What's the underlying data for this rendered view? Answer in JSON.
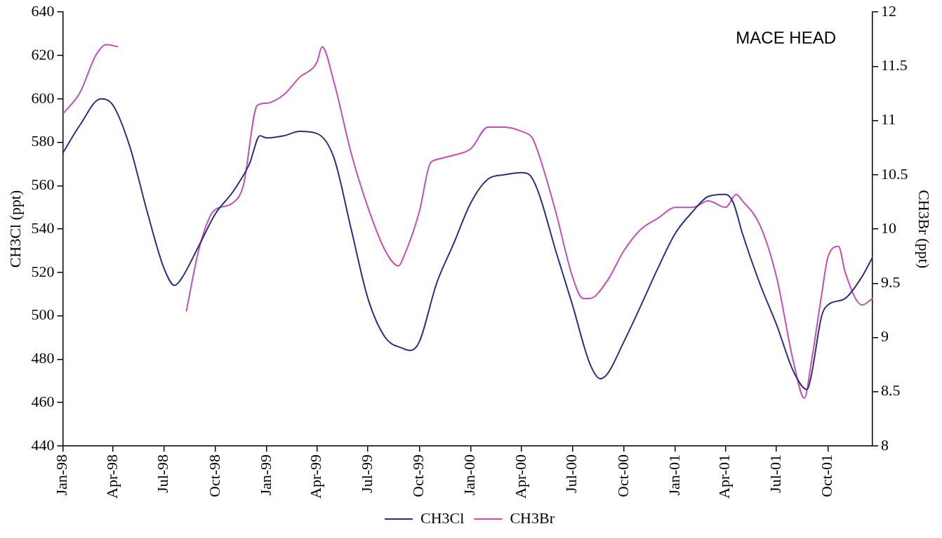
{
  "chart_data": {
    "type": "line",
    "xlabel": null,
    "ylabel": "CH3Cl (ppt)",
    "y2label": "CH3Br (ppt)",
    "annotations": [
      "MACE HEAD"
    ],
    "xlim": [
      "1998-01-01",
      "2001-12-20"
    ],
    "xticks": [
      {
        "value": "1998-01",
        "label": "Jan-98"
      },
      {
        "value": "1998-04",
        "label": "Apr-98"
      },
      {
        "value": "1998-07",
        "label": "Jul-98"
      },
      {
        "value": "1998-10",
        "label": "Oct-98"
      },
      {
        "value": "1999-01",
        "label": "Jan-99"
      },
      {
        "value": "1999-04",
        "label": "Apr-99"
      },
      {
        "value": "1999-07",
        "label": "Jul-99"
      },
      {
        "value": "1999-10",
        "label": "Oct-99"
      },
      {
        "value": "2000-01",
        "label": "Jan-00"
      },
      {
        "value": "2000-04",
        "label": "Apr-00"
      },
      {
        "value": "2000-07",
        "label": "Jul-00"
      },
      {
        "value": "2000-10",
        "label": "Oct-00"
      },
      {
        "value": "2001-01",
        "label": "Jan-01"
      },
      {
        "value": "2001-04",
        "label": "Apr-01"
      },
      {
        "value": "2001-07",
        "label": "Jul-01"
      },
      {
        "value": "2001-10",
        "label": "Oct-01"
      }
    ],
    "ylim": [
      440,
      640
    ],
    "yticks": [
      440,
      460,
      480,
      500,
      520,
      540,
      560,
      580,
      600,
      620,
      640
    ],
    "y2lim": [
      8,
      12
    ],
    "y2ticks": [
      8,
      8.5,
      9,
      9.5,
      10,
      10.5,
      11,
      11.5,
      12
    ],
    "grid": false,
    "legend": "bottom",
    "marker": "none",
    "line_style": "solid",
    "series": [
      {
        "name": "CH3Cl",
        "color": "#2e2f7a",
        "x": [
          "1998-01-01",
          "1998-02-01",
          "1998-03-10",
          "1998-04-01",
          "1998-05-01",
          "1998-06-01",
          "1998-07-01",
          "1998-07-20",
          "1998-08-01",
          "1998-09-01",
          "1998-10-01",
          "1998-11-01",
          "1998-12-01",
          "1998-12-20",
          "1999-01-01",
          "1999-02-01",
          "1999-03-01",
          "1999-04-01",
          "1999-05-01",
          "1999-06-01",
          "1999-07-01",
          "1999-08-01",
          "1999-09-01",
          "1999-09-15",
          "1999-10-01",
          "1999-11-01",
          "1999-12-01",
          "2000-01-01",
          "2000-02-01",
          "2000-03-01",
          "2000-04-01",
          "2000-04-15",
          "2000-05-01",
          "2000-06-01",
          "2000-07-01",
          "2000-08-01",
          "2000-08-20",
          "2000-09-01",
          "2000-10-01",
          "2000-11-01",
          "2000-12-01",
          "2001-01-01",
          "2001-02-01",
          "2001-03-01",
          "2001-04-01",
          "2001-04-15",
          "2001-05-01",
          "2001-06-01",
          "2001-07-01",
          "2001-08-01",
          "2001-08-25",
          "2001-09-01",
          "2001-09-20",
          "2001-10-01",
          "2001-11-01",
          "2001-12-01",
          "2001-12-20"
        ],
        "values": [
          575,
          588,
          600,
          597,
          578,
          548,
          522,
          514,
          517,
          532,
          547,
          557,
          570,
          583,
          582,
          583,
          585,
          584,
          573,
          540,
          508,
          490,
          485,
          484,
          488,
          515,
          533,
          552,
          563,
          565,
          566,
          565,
          557,
          530,
          505,
          478,
          471,
          473,
          488,
          505,
          522,
          538,
          548,
          555,
          556,
          552,
          538,
          515,
          496,
          474,
          466,
          472,
          500,
          505,
          508,
          518,
          527
        ]
      },
      {
        "name": "CH3Br",
        "color": "#c050b8",
        "axis": "y2",
        "x": [
          "1998-01-01",
          "1998-02-01",
          "1998-03-01",
          "1998-03-20",
          "1998-04-10",
          "1998-06-01",
          "1998-08-10",
          "1998-09-01",
          "1998-09-20",
          "1998-10-01",
          "1998-11-01",
          "1998-11-20",
          "1998-12-15",
          "1999-01-01",
          "1999-02-01",
          "1999-03-01",
          "1999-04-01",
          "1999-04-10",
          "1999-05-01",
          "1999-06-01",
          "1999-07-01",
          "1999-08-01",
          "1999-08-25",
          "1999-09-01",
          "1999-10-01",
          "1999-10-20",
          "1999-11-01",
          "1999-12-01",
          "2000-01-01",
          "2000-02-01",
          "2000-03-01",
          "2000-04-01",
          "2000-04-20",
          "2000-05-01",
          "2000-06-01",
          "2000-07-01",
          "2000-07-20",
          "2000-08-01",
          "2000-09-01",
          "2000-10-01",
          "2000-11-01",
          "2000-12-01",
          "2001-01-01",
          "2001-02-01",
          "2001-03-01",
          "2001-04-01",
          "2001-04-20",
          "2001-05-01",
          "2001-06-01",
          "2001-07-01",
          "2001-08-01",
          "2001-08-20",
          "2001-09-01",
          "2001-09-20",
          "2001-10-01",
          "2001-10-20",
          "2001-11-01",
          "2001-12-01",
          "2001-12-20"
        ],
        "values": [
          11.06,
          11.26,
          11.6,
          11.7,
          11.68,
          null,
          9.24,
          9.8,
          10.1,
          10.18,
          10.24,
          10.4,
          11.14,
          11.16,
          11.24,
          11.4,
          11.54,
          11.68,
          11.36,
          10.7,
          10.2,
          9.8,
          9.66,
          9.72,
          10.16,
          10.6,
          10.64,
          10.68,
          10.74,
          10.94,
          10.94,
          10.9,
          10.84,
          10.7,
          10.16,
          9.56,
          9.36,
          9.36,
          9.52,
          9.8,
          10.0,
          10.1,
          10.2,
          10.2,
          10.26,
          10.2,
          10.32,
          10.26,
          10.04,
          9.56,
          8.76,
          8.44,
          8.76,
          9.4,
          9.74,
          9.84,
          9.6,
          9.3,
          9.36
        ]
      }
    ]
  }
}
